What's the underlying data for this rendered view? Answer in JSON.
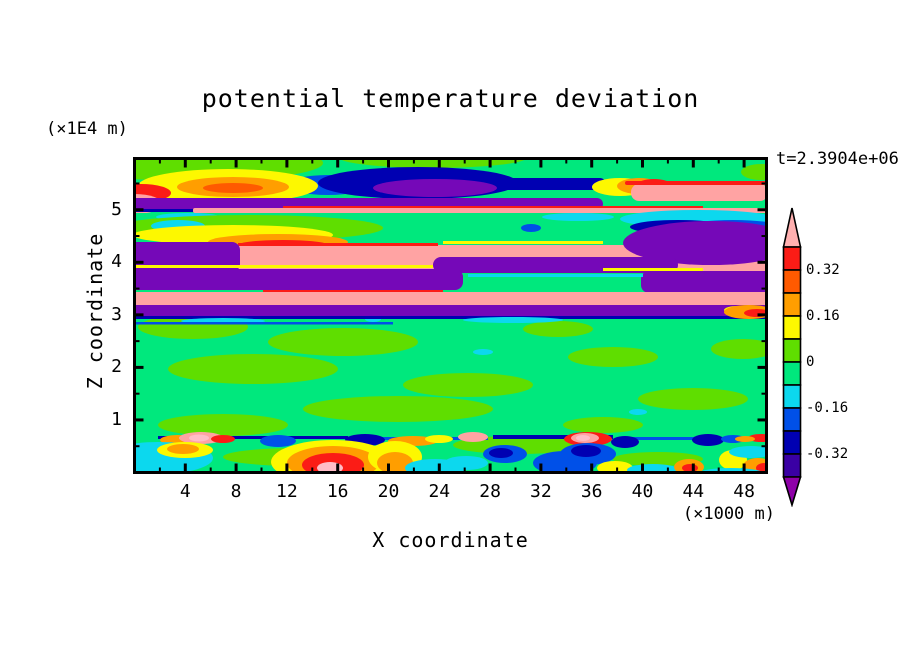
{
  "header": {
    "title": "potential temperature deviation",
    "timestamp": "t=2.3904e+06"
  },
  "x_axis": {
    "label": "X coordinate",
    "unit": "(×1000 m)",
    "ticks": [
      4,
      8,
      12,
      16,
      20,
      24,
      28,
      32,
      36,
      40,
      44,
      48
    ],
    "minor_tick_step": 2,
    "range": [
      0,
      50
    ]
  },
  "y_axis": {
    "label": "Z coordinate",
    "unit": "(×1E4 m)",
    "ticks": [
      1,
      2,
      3,
      4,
      5
    ],
    "minor_tick_step": 0.5,
    "range": [
      0,
      6
    ]
  },
  "colorbar": {
    "labels": [
      "0.32",
      "0.16",
      "0",
      "-0.16",
      "-0.32"
    ],
    "label_boundary_index": [
      1,
      3,
      5,
      7,
      9
    ],
    "segment_colors_top_to_bottom": [
      "red",
      "ored",
      "orange",
      "yellow",
      "chart",
      "spring",
      "cyan",
      "blue",
      "navy",
      "indigo"
    ],
    "arrow_top_color": "cbpink",
    "arrow_bottom_color": "cbpurple"
  },
  "palette": {
    "spring": "#00E87D",
    "chart": "#5FDE00",
    "cyan": "#0CD8EE",
    "blue": "#0050E8",
    "navy": "#0000B2",
    "indigo": "#3A00A4",
    "purple": "#7508B8",
    "cbpurple": "#8E00A8",
    "yellow": "#FDF800",
    "orange": "#FF9E00",
    "ored": "#FF5A00",
    "red": "#FB1C16",
    "salmon": "#FFA3A3",
    "pink": "#FFBDC8",
    "cbpink": "#FFB0B0",
    "frame": "#000000"
  },
  "chart_data": {
    "type": "filled_contour",
    "title": "potential temperature deviation",
    "time_label": "t=2.3904e+06",
    "xlabel": "X coordinate",
    "x_unit": "(×1000 m)",
    "xlim": [
      0,
      50
    ],
    "x_ticks": [
      4,
      8,
      12,
      16,
      20,
      24,
      28,
      32,
      36,
      40,
      44,
      48
    ],
    "ylabel": "Z coordinate",
    "y_unit": "(×1E4 m)",
    "ylim": [
      0,
      6
    ],
    "y_ticks": [
      1,
      2,
      3,
      4,
      5
    ],
    "contour_interval": 0.08,
    "levels": [
      -0.4,
      -0.32,
      -0.24,
      -0.16,
      -0.08,
      0,
      0.08,
      0.16,
      0.24,
      0.32,
      0.4
    ],
    "colorbar_labels": [
      "0.32",
      "0.16",
      "0",
      "-0.16",
      "-0.32"
    ],
    "legend_position": "right",
    "grid": false,
    "description": "Vertical cross-section (x vs z) of potential temperature deviation. Above z=3.2e4 m the field is strongly stratified: alternating quasi-horizontal bands of large positive deviation (salmon, >0.4) and large negative deviation (purple, <-0.4) separated by thin rainbow transition layers, with green (near 0) at the top of the domain, a dark-blue negative blob near x=18-36 at z=5.7, and yellow-orange positive blobs on the left near z=5.4 and z=4.6. Below z=3 the field is near zero (two shades of green, mottled), except a thin turbulent layer at z=0.75 with small strong positive (red/pink) and negative (blue/navy) pockets, and scattered positive/negative blobs near the ground, including a strong positive anomaly (red with pink core) around x=16.5.",
    "shape_format": "[kind,x,y,w_or_rx,h_or_ry,colorKey,(rectCornerRadius)] in plot-pixel coords 635x317; kind e=ellipse(cx,cy,rx,ry), r=rect(x,y,w,h)",
    "shapes": [
      [
        "r",
        0,
        0,
        635,
        317,
        "spring"
      ],
      [
        "e",
        60,
        6,
        130,
        18,
        "chart"
      ],
      [
        "e",
        300,
        0,
        95,
        11,
        "chart"
      ],
      [
        "r",
        0,
        0,
        150,
        14,
        "chart"
      ],
      [
        "e",
        628,
        15,
        20,
        8,
        "chart"
      ],
      [
        "e",
        60,
        170,
        55,
        12,
        "chart"
      ],
      [
        "e",
        210,
        185,
        75,
        14,
        "chart"
      ],
      [
        "e",
        120,
        212,
        85,
        15,
        "chart"
      ],
      [
        "e",
        335,
        228,
        65,
        12,
        "chart"
      ],
      [
        "e",
        480,
        200,
        45,
        10,
        "chart"
      ],
      [
        "e",
        265,
        252,
        95,
        13,
        "chart"
      ],
      [
        "e",
        90,
        268,
        65,
        11,
        "chart"
      ],
      [
        "e",
        425,
        172,
        35,
        8,
        "chart"
      ],
      [
        "e",
        560,
        242,
        55,
        11,
        "chart"
      ],
      [
        "e",
        385,
        288,
        65,
        9,
        "chart"
      ],
      [
        "e",
        165,
        300,
        75,
        9,
        "chart"
      ],
      [
        "e",
        525,
        302,
        45,
        7,
        "chart"
      ],
      [
        "e",
        610,
        192,
        32,
        10,
        "chart"
      ],
      [
        "e",
        470,
        268,
        40,
        8,
        "chart"
      ],
      [
        "e",
        350,
        195,
        10,
        3,
        "cyan"
      ],
      [
        "e",
        240,
        162,
        8,
        3,
        "cyan"
      ],
      [
        "e",
        505,
        255,
        9,
        3,
        "cyan"
      ],
      [
        "e",
        195,
        28,
        40,
        10,
        "blue"
      ],
      [
        "e",
        285,
        26,
        100,
        16,
        "navy"
      ],
      [
        "e",
        302,
        31,
        62,
        9,
        "purple"
      ],
      [
        "r",
        368,
        21,
        105,
        12,
        "navy",
        6
      ],
      [
        "e",
        487,
        30,
        28,
        9,
        "yellow"
      ],
      [
        "e",
        506,
        29,
        22,
        8,
        "orange"
      ],
      [
        "e",
        521,
        28,
        17,
        6,
        "red"
      ],
      [
        "r",
        498,
        27,
        137,
        17,
        "salmon",
        8
      ],
      [
        "r",
        492,
        24,
        143,
        4,
        "red",
        2
      ],
      [
        "e",
        95,
        29,
        90,
        17,
        "yellow"
      ],
      [
        "e",
        100,
        30,
        56,
        10,
        "orange"
      ],
      [
        "e",
        100,
        31,
        30,
        5,
        "ored"
      ],
      [
        "e",
        8,
        36,
        30,
        9,
        "red"
      ],
      [
        "e",
        2,
        47,
        27,
        10,
        "salmon"
      ],
      [
        "r",
        -5,
        41,
        475,
        12,
        "purple",
        6
      ],
      [
        "r",
        0,
        52,
        120,
        3,
        "navy"
      ],
      [
        "r",
        60,
        51,
        575,
        5,
        "salmon",
        2
      ],
      [
        "r",
        150,
        49,
        420,
        2,
        "red"
      ],
      [
        "r",
        0,
        56,
        635,
        8,
        "spring"
      ],
      [
        "e",
        55,
        60,
        32,
        4,
        "cyan"
      ],
      [
        "e",
        445,
        60,
        36,
        4,
        "cyan"
      ],
      [
        "e",
        555,
        60,
        26,
        4,
        "cyan"
      ],
      [
        "e",
        115,
        71,
        135,
        13,
        "chart"
      ],
      [
        "e",
        45,
        69,
        27,
        6,
        "cyan"
      ],
      [
        "e",
        100,
        78,
        100,
        10,
        "yellow"
      ],
      [
        "e",
        145,
        85,
        70,
        8,
        "orange"
      ],
      [
        "e",
        150,
        88,
        45,
        5,
        "red"
      ],
      [
        "r",
        95,
        88,
        545,
        27,
        "salmon",
        12
      ],
      [
        "r",
        105,
        86,
        200,
        3,
        "red"
      ],
      [
        "r",
        310,
        84,
        160,
        3,
        "yellow"
      ],
      [
        "e",
        565,
        62,
        78,
        9,
        "cyan"
      ],
      [
        "e",
        600,
        69,
        45,
        6,
        "blue"
      ],
      [
        "e",
        545,
        70,
        48,
        7,
        "navy"
      ],
      [
        "e",
        578,
        86,
        88,
        22,
        "purple"
      ],
      [
        "e",
        398,
        71,
        10,
        4,
        "blue"
      ],
      [
        "r",
        -5,
        85,
        112,
        30,
        "purple",
        8
      ],
      [
        "r",
        300,
        100,
        245,
        16,
        "purple",
        8
      ],
      [
        "r",
        -5,
        112,
        335,
        21,
        "purple",
        8
      ],
      [
        "r",
        508,
        114,
        132,
        22,
        "purple",
        8
      ],
      [
        "r",
        0,
        108,
        300,
        3,
        "yellow"
      ],
      [
        "r",
        130,
        133,
        140,
        3,
        "red"
      ],
      [
        "r",
        335,
        117,
        175,
        3,
        "cyan"
      ],
      [
        "r",
        470,
        111,
        100,
        3,
        "yellow"
      ],
      [
        "r",
        -5,
        135,
        645,
        14,
        "salmon",
        6
      ],
      [
        "r",
        150,
        133,
        160,
        2,
        "red"
      ],
      [
        "r",
        -5,
        148,
        645,
        12,
        "purple",
        6
      ],
      [
        "r",
        -5,
        159,
        645,
        3,
        "navy"
      ],
      [
        "e",
        605,
        153,
        14,
        4,
        "yellow"
      ],
      [
        "e",
        616,
        155,
        25,
        7,
        "orange"
      ],
      [
        "e",
        624,
        156,
        13,
        4,
        "red"
      ],
      [
        "e",
        90,
        164,
        42,
        3,
        "cyan"
      ],
      [
        "e",
        380,
        163,
        50,
        3,
        "cyan"
      ],
      [
        "r",
        0,
        165,
        260,
        2.5,
        "blue"
      ],
      [
        "r",
        25,
        279,
        190,
        3,
        "navy"
      ],
      [
        "r",
        235,
        280,
        120,
        3,
        "blue"
      ],
      [
        "r",
        360,
        278,
        120,
        4,
        "navy"
      ],
      [
        "r",
        490,
        280,
        145,
        3,
        "blue"
      ],
      [
        "e",
        45,
        283,
        18,
        5,
        "orange"
      ],
      [
        "e",
        68,
        281,
        22,
        6,
        "salmon"
      ],
      [
        "e",
        66,
        281,
        10,
        3.5,
        "pink"
      ],
      [
        "e",
        90,
        282,
        12,
        4,
        "red"
      ],
      [
        "e",
        145,
        284,
        18,
        6,
        "blue"
      ],
      [
        "e",
        232,
        283,
        20,
        6,
        "navy"
      ],
      [
        "e",
        280,
        284,
        25,
        5,
        "orange"
      ],
      [
        "e",
        306,
        282,
        14,
        4,
        "yellow"
      ],
      [
        "e",
        340,
        280,
        15,
        5,
        "salmon"
      ],
      [
        "e",
        455,
        282,
        24,
        7,
        "red"
      ],
      [
        "e",
        452,
        281,
        14,
        5,
        "salmon"
      ],
      [
        "e",
        450,
        281,
        7,
        3,
        "pink"
      ],
      [
        "e",
        492,
        285,
        14,
        6,
        "navy"
      ],
      [
        "e",
        575,
        283,
        16,
        6,
        "navy"
      ],
      [
        "e",
        600,
        282,
        12,
        4,
        "blue"
      ],
      [
        "e",
        628,
        281,
        13,
        4,
        "red"
      ],
      [
        "e",
        612,
        282,
        10,
        3,
        "orange"
      ],
      [
        "e",
        25,
        301,
        55,
        16,
        "cyan"
      ],
      [
        "e",
        0,
        313,
        42,
        10,
        "cyan"
      ],
      [
        "e",
        52,
        293,
        28,
        8,
        "yellow"
      ],
      [
        "e",
        50,
        292,
        16,
        5,
        "orange"
      ],
      [
        "e",
        200,
        305,
        62,
        22,
        "yellow"
      ],
      [
        "e",
        200,
        306,
        46,
        17,
        "orange"
      ],
      [
        "e",
        200,
        308,
        31,
        12,
        "red"
      ],
      [
        "e",
        197,
        311,
        13,
        6,
        "pink"
      ],
      [
        "e",
        262,
        300,
        27,
        16,
        "yellow"
      ],
      [
        "e",
        262,
        306,
        18,
        11,
        "orange"
      ],
      [
        "e",
        302,
        311,
        30,
        9,
        "cyan"
      ],
      [
        "e",
        333,
        306,
        22,
        7,
        "cyan"
      ],
      [
        "e",
        372,
        297,
        22,
        9,
        "blue"
      ],
      [
        "e",
        368,
        296,
        12,
        5,
        "navy"
      ],
      [
        "e",
        432,
        306,
        32,
        12,
        "blue"
      ],
      [
        "e",
        455,
        297,
        28,
        11,
        "blue"
      ],
      [
        "e",
        453,
        294,
        15,
        6,
        "navy"
      ],
      [
        "e",
        482,
        311,
        18,
        7,
        "yellow"
      ],
      [
        "e",
        520,
        313,
        26,
        6,
        "cyan"
      ],
      [
        "e",
        556,
        310,
        15,
        8,
        "orange"
      ],
      [
        "e",
        557,
        311,
        8,
        4,
        "red"
      ],
      [
        "e",
        600,
        303,
        14,
        10,
        "yellow"
      ],
      [
        "e",
        625,
        309,
        15,
        8,
        "orange"
      ],
      [
        "e",
        631,
        311,
        8,
        5,
        "red"
      ],
      [
        "e",
        618,
        295,
        22,
        6,
        "cyan"
      ],
      [
        "e",
        598,
        316,
        32,
        5,
        "cyan"
      ]
    ]
  }
}
